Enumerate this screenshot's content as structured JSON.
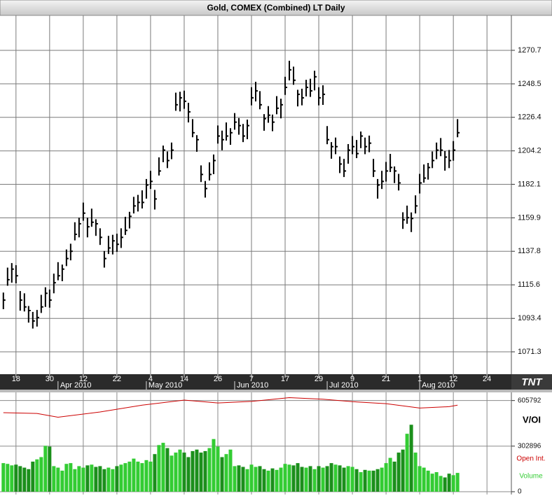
{
  "chart_data": [
    {
      "type": "ohlc",
      "title": "Gold, COMEX (Combined) LT Daily",
      "color": "#000000",
      "grid": true,
      "x": [
        -3,
        -2,
        -1,
        0,
        1,
        2,
        3,
        4,
        5,
        6,
        7,
        8,
        9,
        10,
        11,
        12,
        13,
        14,
        15,
        16,
        17,
        18,
        19,
        20,
        21,
        22,
        23,
        24,
        25,
        26,
        27,
        28,
        29,
        30,
        31,
        32,
        33,
        34,
        35,
        36,
        37,
        38,
        39,
        40,
        41,
        42,
        43,
        44,
        45,
        46,
        47,
        48,
        49,
        50,
        51,
        52,
        53,
        54,
        55,
        56,
        57,
        58,
        59,
        60,
        61,
        62,
        63,
        64,
        65,
        66,
        67,
        68,
        69,
        70,
        71,
        72,
        73,
        74,
        75,
        76,
        77,
        78,
        79,
        80,
        81,
        82,
        83,
        84,
        85,
        86,
        87,
        88,
        89,
        90,
        91,
        92,
        93,
        94,
        95,
        96,
        97,
        98,
        99,
        100,
        101,
        102,
        103,
        104,
        105
      ],
      "high": [
        1110.5,
        1127,
        1130,
        1128.6,
        1111.5,
        1110,
        1101.6,
        1097.7,
        1099,
        1109,
        1114,
        1112.5,
        1123,
        1130.6,
        1129,
        1139,
        1142.8,
        1157,
        1160,
        1170,
        1160,
        1166,
        1159,
        1153,
        1138,
        1148,
        1148.7,
        1149.4,
        1153,
        1160.6,
        1163.9,
        1173.8,
        1175.1,
        1178.1,
        1185.6,
        1191,
        1178.4,
        1199.9,
        1207.7,
        1203.8,
        1209.7,
        1242.7,
        1243.3,
        1244,
        1236,
        1225.2,
        1214.6,
        1194.6,
        1184.3,
        1196.6,
        1201.8,
        1221,
        1217.6,
        1223,
        1219.2,
        1229.2,
        1225.9,
        1222,
        1224.9,
        1246.3,
        1249.9,
        1243.7,
        1228.5,
        1233.8,
        1228.2,
        1240.4,
        1238.7,
        1253.2,
        1263.8,
        1259.9,
        1244.6,
        1245.3,
        1251.2,
        1251.9,
        1257.2,
        1246.3,
        1247.6,
        1220.6,
        1210,
        1213,
        1200.5,
        1198.9,
        1208.7,
        1214,
        1211.4,
        1217,
        1213,
        1214.3,
        1198.9,
        1185.6,
        1191,
        1196.9,
        1202.2,
        1193.9,
        1189,
        1163.6,
        1168,
        1163.5,
        1174.8,
        1189,
        1195.2,
        1196.2,
        1203.8,
        1209.7,
        1212.7,
        1204.1,
        1204.8,
        1210.7,
        1225.2
      ],
      "low": [
        1099.5,
        1115,
        1117,
        1116.6,
        1098.5,
        1098,
        1090.6,
        1086.7,
        1088,
        1097,
        1101,
        1100.5,
        1110,
        1118.6,
        1118,
        1128,
        1131.8,
        1145,
        1147,
        1158,
        1147,
        1154,
        1148,
        1142,
        1127,
        1136,
        1135.7,
        1137.4,
        1140,
        1148.6,
        1152.9,
        1162.8,
        1164.1,
        1166.1,
        1172.6,
        1179,
        1165.4,
        1187.9,
        1196.7,
        1192.8,
        1198.7,
        1230.7,
        1230.3,
        1232,
        1223,
        1213.2,
        1203.6,
        1183.6,
        1173.3,
        1184.6,
        1188.8,
        1209,
        1204.6,
        1211,
        1208.2,
        1218.2,
        1214.9,
        1210,
        1211.9,
        1234.3,
        1236.9,
        1231.7,
        1217.5,
        1222.8,
        1217.2,
        1228.4,
        1225.7,
        1241.2,
        1250.8,
        1247.9,
        1233.6,
        1234.3,
        1240.2,
        1239.9,
        1244.2,
        1234.3,
        1234.6,
        1208.6,
        1199,
        1202,
        1189.5,
        1186.9,
        1195.7,
        1202,
        1199.4,
        1206,
        1202,
        1203.3,
        1186.9,
        1172.6,
        1179,
        1183.9,
        1190.2,
        1182.9,
        1178,
        1152.6,
        1156,
        1150.5,
        1162.8,
        1176,
        1183.2,
        1185.2,
        1192.8,
        1198.7,
        1200.7,
        1191.1,
        1192.8,
        1197.7,
        1213.2
      ],
      "close": [
        1105.5,
        1119,
        1126,
        1121.6,
        1105.5,
        1101,
        1098.6,
        1091.7,
        1094,
        1101,
        1110,
        1105.5,
        1117,
        1121.6,
        1126,
        1133,
        1137.8,
        1149,
        1156,
        1163,
        1154,
        1157,
        1156,
        1147,
        1133,
        1140,
        1144.7,
        1142.4,
        1147,
        1151.6,
        1160.9,
        1167.8,
        1170.1,
        1170.1,
        1181.6,
        1184,
        1172.4,
        1190.9,
        1204.7,
        1197.8,
        1204.7,
        1234.7,
        1239.3,
        1237,
        1230,
        1216.2,
        1211.6,
        1188.6,
        1179.3,
        1188.6,
        1197.8,
        1214,
        1211.6,
        1214,
        1216.2,
        1223.2,
        1220.9,
        1214,
        1220.9,
        1239.3,
        1243.9,
        1234.7,
        1225.5,
        1227.8,
        1223.2,
        1232.4,
        1234.7,
        1246.2,
        1257.8,
        1250.9,
        1241.6,
        1239.3,
        1246.2,
        1243.9,
        1253.2,
        1239.3,
        1241.6,
        1211.6,
        1207,
        1207,
        1195.5,
        1190.9,
        1204.7,
        1207,
        1202.4,
        1214,
        1207,
        1209.3,
        1190.9,
        1181.6,
        1184,
        1190.9,
        1193.2,
        1190.9,
        1183,
        1158.6,
        1160,
        1159.5,
        1167.8,
        1183,
        1186.2,
        1193.2,
        1197.8,
        1204.7,
        1204.7,
        1200.1,
        1197.8,
        1204.7,
        1216.2
      ],
      "xlim": [
        -3.8,
        117.8
      ],
      "xticks": [
        {
          "value": 0,
          "label": "18"
        },
        {
          "value": 8,
          "label": "30"
        },
        {
          "value": 16,
          "label": "12"
        },
        {
          "value": 24,
          "label": "22"
        },
        {
          "value": 32,
          "label": "4"
        },
        {
          "value": 40,
          "label": "14"
        },
        {
          "value": 48,
          "label": "26"
        },
        {
          "value": 56,
          "label": "7"
        },
        {
          "value": 64,
          "label": "17"
        },
        {
          "value": 72,
          "label": "29"
        },
        {
          "value": 80,
          "label": "9"
        },
        {
          "value": 88,
          "label": "21"
        },
        {
          "value": 96,
          "label": "1"
        },
        {
          "value": 104,
          "label": "12"
        },
        {
          "value": 112,
          "label": "24"
        }
      ],
      "month_ticks": [
        {
          "value": 10,
          "label": "Apr 2010"
        },
        {
          "value": 31,
          "label": "May 2010"
        },
        {
          "value": 52,
          "label": "Jun 2010"
        },
        {
          "value": 74,
          "label": "Jul 2010"
        },
        {
          "value": 96,
          "label": "Aug 2010"
        }
      ],
      "ylim": [
        1056.5,
        1293.8
      ],
      "yticks": [
        1071.3,
        1093.4,
        1115.6,
        1137.8,
        1159.9,
        1182.1,
        1204.2,
        1226.4,
        1248.5,
        1270.7
      ]
    },
    {
      "type": "volume",
      "label": "V/OI",
      "grid": true,
      "xlim": [
        -3.8,
        117.8
      ],
      "ylim": [
        0,
        660000
      ],
      "yticks": [
        0,
        302896,
        605792
      ],
      "series": [
        {
          "name": "Open Int.",
          "type": "line",
          "color": "#cc0000",
          "x": [
            -3,
            5,
            10,
            20,
            30,
            40,
            48,
            56,
            65,
            73,
            80,
            88,
            96,
            103,
            105
          ],
          "values": [
            525000,
            520000,
            495000,
            530000,
            575000,
            609000,
            590000,
            600000,
            625000,
            615000,
            598000,
            585000,
            556000,
            565000,
            575000
          ]
        },
        {
          "name": "Volume",
          "type": "bar",
          "color": "#33cc33",
          "down_color": "#1b8f1b",
          "values": [
            190000,
            185000,
            175000,
            180000,
            170000,
            160000,
            150000,
            200000,
            215000,
            230000,
            305000,
            300000,
            170000,
            160000,
            140000,
            185000,
            190000,
            150000,
            170000,
            160000,
            175000,
            180000,
            165000,
            170000,
            150000,
            160000,
            150000,
            170000,
            180000,
            190000,
            200000,
            220000,
            200000,
            190000,
            210000,
            200000,
            250000,
            310000,
            325000,
            290000,
            240000,
            260000,
            280000,
            260000,
            230000,
            270000,
            280000,
            260000,
            270000,
            290000,
            350000,
            300000,
            230000,
            250000,
            280000,
            170000,
            175000,
            165000,
            150000,
            180000,
            165000,
            170000,
            150000,
            140000,
            155000,
            145000,
            160000,
            185000,
            180000,
            175000,
            190000,
            165000,
            160000,
            170000,
            150000,
            170000,
            160000,
            170000,
            190000,
            180000,
            175000,
            160000,
            170000,
            165000,
            150000,
            130000,
            145000,
            140000,
            140000,
            150000,
            160000,
            190000,
            225000,
            200000,
            260000,
            280000,
            385000,
            445000,
            260000,
            170000,
            160000,
            140000,
            120000,
            130000,
            105000,
            95000,
            120000,
            110000,
            125000
          ]
        }
      ]
    }
  ]
}
